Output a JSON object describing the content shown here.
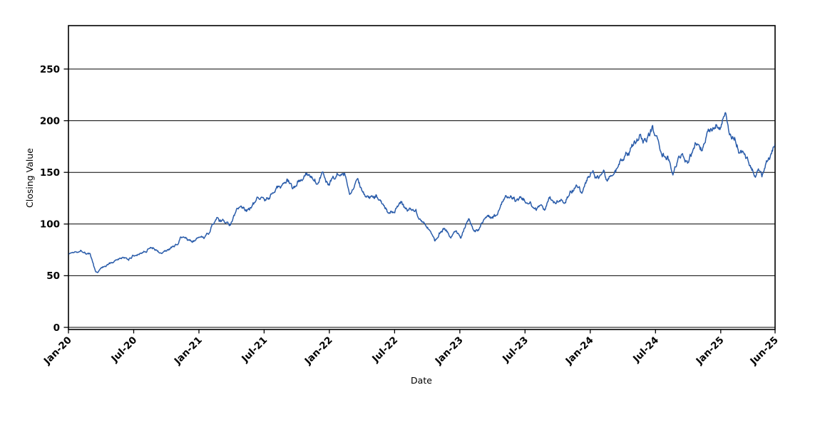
{
  "chart_data": {
    "type": "line",
    "title": "",
    "xlabel": "Date",
    "ylabel": "Closing Value",
    "x_axis": {
      "tick_labels": [
        "Jan-20",
        "Jul-20",
        "Jan-21",
        "Jul-21",
        "Jan-22",
        "Jul-22",
        "Jan-23",
        "Jul-23",
        "Jan-24",
        "Jul-24",
        "Jan-25",
        "Jun-25"
      ],
      "tick_months_from_start": [
        0,
        6,
        12,
        18,
        24,
        30,
        36,
        42,
        48,
        54,
        60,
        65
      ],
      "range_months": [
        0,
        65
      ],
      "label_rotation_deg": 45
    },
    "y_axis": {
      "tick_labels": [
        "0",
        "50",
        "100",
        "150",
        "200",
        "250"
      ],
      "tick_values": [
        0,
        50,
        100,
        150,
        200,
        250
      ],
      "ylim": [
        0,
        292
      ]
    },
    "grid": "horizontal-black",
    "legend": "none",
    "series": [
      {
        "name": "Closing Value",
        "color": "#2a5caa",
        "style": "daily jagged line",
        "anchors_t_months_value": [
          [
            0,
            71
          ],
          [
            0.5,
            73
          ],
          [
            1,
            75.5
          ],
          [
            1.5,
            74
          ],
          [
            2,
            70
          ],
          [
            2.5,
            54
          ],
          [
            2.7,
            53
          ],
          [
            3,
            57
          ],
          [
            3.5,
            60
          ],
          [
            4,
            62
          ],
          [
            4.5,
            65
          ],
          [
            5,
            67
          ],
          [
            5.5,
            65
          ],
          [
            6,
            70
          ],
          [
            6.5,
            72
          ],
          [
            7,
            74
          ],
          [
            7.6,
            78
          ],
          [
            8,
            75
          ],
          [
            8.5,
            72
          ],
          [
            9,
            74
          ],
          [
            9.5,
            77
          ],
          [
            10,
            80
          ],
          [
            10.3,
            88
          ],
          [
            10.8,
            85
          ],
          [
            11.3,
            82
          ],
          [
            12,
            88
          ],
          [
            12.5,
            85
          ],
          [
            12.9,
            90
          ],
          [
            13.2,
            100
          ],
          [
            13.6,
            106
          ],
          [
            14.2,
            102
          ],
          [
            14.9,
            100
          ],
          [
            15.5,
            112
          ],
          [
            16,
            116
          ],
          [
            16.4,
            113
          ],
          [
            17,
            118
          ],
          [
            18,
            126
          ],
          [
            18.7,
            129
          ],
          [
            19.2,
            133
          ],
          [
            19.7,
            138
          ],
          [
            20.1,
            142
          ],
          [
            20.6,
            134
          ],
          [
            21.1,
            139
          ],
          [
            21.7,
            145
          ],
          [
            22.3,
            149
          ],
          [
            22.9,
            144
          ],
          [
            23.4,
            151
          ],
          [
            23.9,
            138
          ],
          [
            24.4,
            146
          ],
          [
            25,
            148
          ],
          [
            25.4,
            149
          ],
          [
            25.9,
            132
          ],
          [
            26.5,
            140
          ],
          [
            27.1,
            133
          ],
          [
            27.7,
            124
          ],
          [
            28.3,
            127
          ],
          [
            28.9,
            117
          ],
          [
            29.5,
            110
          ],
          [
            30.1,
            116
          ],
          [
            30.6,
            121
          ],
          [
            31.2,
            113
          ],
          [
            31.7,
            117
          ],
          [
            32.2,
            109
          ],
          [
            32.6,
            103
          ],
          [
            33,
            99
          ],
          [
            33.7,
            85
          ],
          [
            34.1,
            92
          ],
          [
            34.6,
            97
          ],
          [
            35.2,
            88
          ],
          [
            35.6,
            93
          ],
          [
            36.1,
            88
          ],
          [
            36.8,
            106
          ],
          [
            37.4,
            92
          ],
          [
            37.8,
            95
          ],
          [
            38.3,
            104
          ],
          [
            39,
            107
          ],
          [
            39.4,
            109
          ],
          [
            40.1,
            124
          ],
          [
            40.7,
            128
          ],
          [
            41.1,
            124
          ],
          [
            41.6,
            128
          ],
          [
            42,
            124
          ],
          [
            42.5,
            120
          ],
          [
            43,
            113
          ],
          [
            43.4,
            119
          ],
          [
            43.8,
            113
          ],
          [
            44.3,
            126
          ],
          [
            44.8,
            118
          ],
          [
            45.2,
            123
          ],
          [
            45.6,
            119
          ],
          [
            46.2,
            133
          ],
          [
            46.8,
            137
          ],
          [
            47.2,
            131
          ],
          [
            47.6,
            140
          ],
          [
            48.1,
            153
          ],
          [
            48.5,
            146
          ],
          [
            48.8,
            143
          ],
          [
            49.3,
            150
          ],
          [
            49.6,
            142
          ],
          [
            50.3,
            151
          ],
          [
            51,
            162
          ],
          [
            51.5,
            171
          ],
          [
            52.1,
            177
          ],
          [
            52.7,
            184
          ],
          [
            53.1,
            179
          ],
          [
            53.7,
            191
          ],
          [
            54.2,
            181
          ],
          [
            54.6,
            166
          ],
          [
            55.1,
            165
          ],
          [
            55.6,
            148
          ],
          [
            56.1,
            162
          ],
          [
            56.5,
            167
          ],
          [
            57,
            161
          ],
          [
            57.5,
            175
          ],
          [
            57.9,
            183
          ],
          [
            58.3,
            173
          ],
          [
            58.7,
            190
          ],
          [
            59.1,
            187
          ],
          [
            59.5,
            193
          ],
          [
            59.9,
            198
          ],
          [
            60.3,
            200
          ],
          [
            60.5,
            206
          ],
          [
            60.8,
            188
          ],
          [
            61.3,
            183
          ],
          [
            61.8,
            172
          ],
          [
            62.3,
            166
          ],
          [
            62.8,
            157
          ],
          [
            63.2,
            147
          ],
          [
            63.5,
            152
          ],
          [
            63.8,
            146
          ],
          [
            64.1,
            155
          ],
          [
            64.4,
            162
          ],
          [
            64.7,
            170
          ],
          [
            65,
            178
          ]
        ],
        "jitter_hint": {
          "ar_coeff": 0.82,
          "base_scale": 1.25,
          "points_per_month": 21.5,
          "seed": 1337
        }
      }
    ],
    "colors": {
      "line": "#2a5caa",
      "grid": "#000000",
      "text": "#000000",
      "background": "#ffffff"
    }
  }
}
